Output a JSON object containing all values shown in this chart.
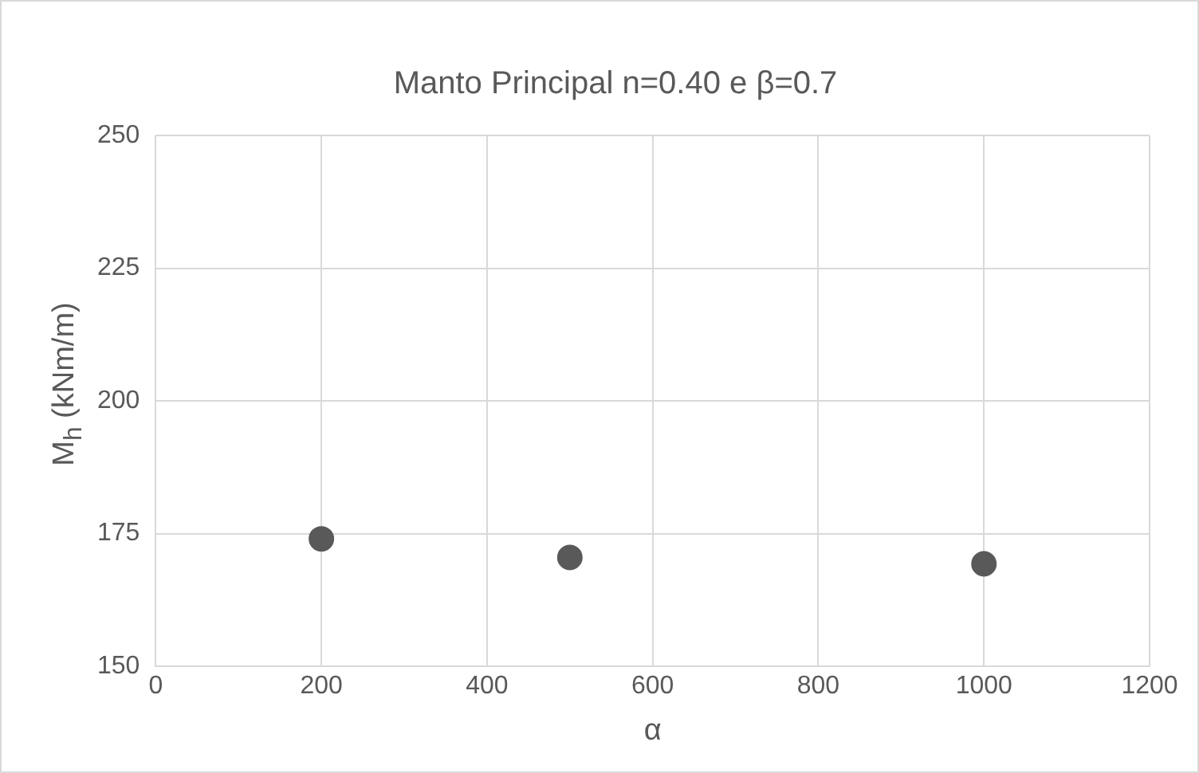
{
  "chart_data": {
    "type": "scatter",
    "title": "Manto Principal n=0.40 e β=0.7",
    "xlabel": "α",
    "ylabel": "M$_{h}$ (kNm/m)",
    "series": [
      {
        "x": [
          200,
          500,
          1000
        ],
        "values": [
          174,
          170.5,
          169.3
        ],
        "color": "#595959"
      }
    ],
    "xlim": [
      0,
      1200
    ],
    "xticks": [
      0,
      200,
      400,
      600,
      800,
      1000,
      1200
    ],
    "ylim": [
      150,
      250
    ],
    "yticks": [
      150,
      175,
      200,
      225,
      250
    ],
    "grid": true,
    "legend": false,
    "marker": "circle"
  }
}
